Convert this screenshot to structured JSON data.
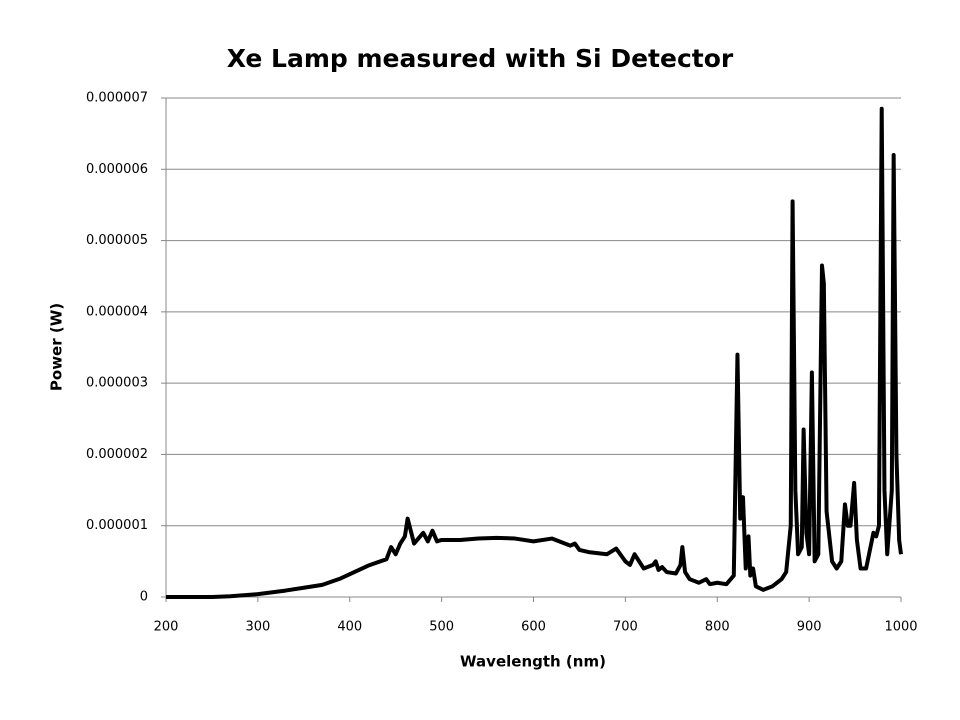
{
  "chart_data": {
    "type": "line",
    "title": "Xe Lamp measured with Si Detector",
    "x_label": "Wavelength (nm)",
    "y_label": "Power (W)",
    "color": "#000000",
    "grid": true,
    "xlim": [
      200,
      1000
    ],
    "xticks": [
      200,
      300,
      400,
      500,
      600,
      700,
      800,
      900,
      1000
    ],
    "ylim": [
      0,
      7e-06
    ],
    "yticks": [
      0,
      1e-06,
      2e-06,
      3e-06,
      4e-06,
      5e-06,
      6e-06,
      7e-06
    ],
    "x": [
      200,
      250,
      270,
      300,
      330,
      350,
      370,
      390,
      400,
      420,
      440,
      445,
      450,
      455,
      460,
      463,
      466,
      470,
      480,
      485,
      490,
      495,
      500,
      520,
      540,
      560,
      580,
      600,
      620,
      640,
      645,
      650,
      660,
      680,
      690,
      700,
      705,
      710,
      720,
      730,
      733,
      736,
      740,
      745,
      755,
      760,
      762,
      765,
      770,
      780,
      788,
      792,
      800,
      810,
      818,
      822,
      825,
      828,
      831,
      834,
      836,
      839,
      842,
      850,
      860,
      870,
      875,
      880,
      882,
      885,
      888,
      892,
      894,
      897,
      900,
      903,
      906,
      910,
      914,
      916,
      919,
      925,
      930,
      935,
      939,
      942,
      945,
      949,
      952,
      956,
      962,
      970,
      973,
      976,
      979,
      982,
      985,
      990,
      992,
      995,
      998,
      1000
    ],
    "values": [
      0,
      0,
      1e-08,
      4e-08,
      9e-08,
      1.3e-07,
      1.7e-07,
      2.6e-07,
      3.2e-07,
      4.4e-07,
      5.3e-07,
      7e-07,
      6e-07,
      7.5e-07,
      8.5e-07,
      1.1e-06,
      9.5e-07,
      7.5e-07,
      9e-07,
      7.8e-07,
      9.3e-07,
      7.8e-07,
      8e-07,
      8e-07,
      8.2e-07,
      8.3e-07,
      8.2e-07,
      7.8e-07,
      8.2e-07,
      7.2e-07,
      7.5e-07,
      6.6e-07,
      6.3e-07,
      6e-07,
      6.8e-07,
      5e-07,
      4.5e-07,
      6e-07,
      4e-07,
      4.5e-07,
      5e-07,
      3.8e-07,
      4.2e-07,
      3.5e-07,
      3.3e-07,
      4.5e-07,
      7e-07,
      3.5e-07,
      2.5e-07,
      2e-07,
      2.5e-07,
      1.8e-07,
      2e-07,
      1.8e-07,
      3e-07,
      3.4e-06,
      1.1e-06,
      1.4e-06,
      4e-07,
      8.5e-07,
      3e-07,
      4e-07,
      1.5e-07,
      1e-07,
      1.5e-07,
      2.5e-07,
      3.5e-07,
      1e-06,
      5.55e-06,
      1.5e-06,
      6e-07,
      7e-07,
      2.35e-06,
      9e-07,
      6e-07,
      3.15e-06,
      5e-07,
      6e-07,
      4.65e-06,
      4.4e-06,
      1.2e-06,
      5e-07,
      4e-07,
      5e-07,
      1.3e-06,
      1e-06,
      1e-06,
      1.6e-06,
      8e-07,
      4e-07,
      4e-07,
      9e-07,
      8.5e-07,
      1e-06,
      6.85e-06,
      1.5e-06,
      6e-07,
      1.5e-06,
      6.2e-06,
      2e-06,
      8e-07,
      6e-07
    ]
  }
}
